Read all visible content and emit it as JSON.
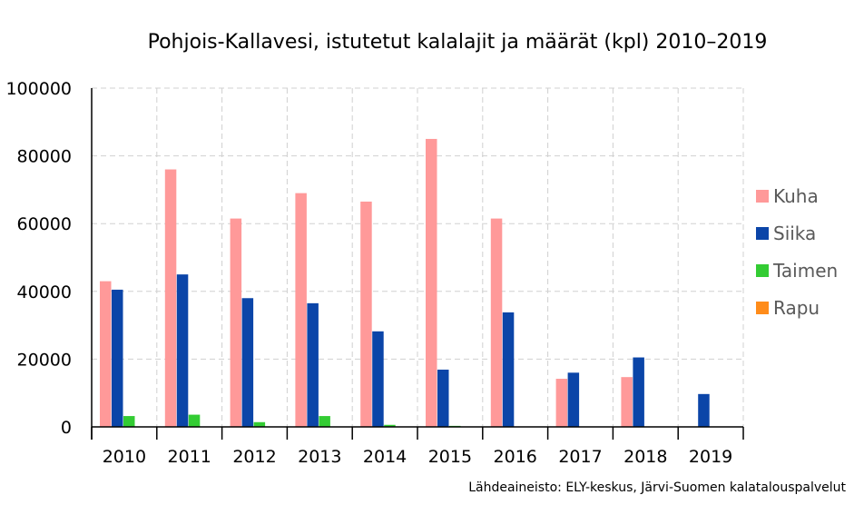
{
  "chart_data": {
    "type": "bar",
    "title": "Pohjois-Kallavesi, istutetut kalalajit ja määrät (kpl) 2010–2019",
    "xlabel": "",
    "ylabel": "",
    "categories": [
      "2010",
      "2011",
      "2012",
      "2013",
      "2014",
      "2015",
      "2016",
      "2017",
      "2018",
      "2019"
    ],
    "ylim": [
      0,
      100000
    ],
    "yticks": [
      "0",
      "20000",
      "40000",
      "60000",
      "80000",
      "100000"
    ],
    "grid": true,
    "legend_position": "right",
    "series": [
      {
        "name": "Kuha",
        "color": "#ff9999",
        "values": [
          43000,
          76000,
          61500,
          69000,
          66500,
          85000,
          61500,
          14200,
          14700,
          0
        ]
      },
      {
        "name": "Siika",
        "color": "#0b45a8",
        "values": [
          40500,
          45000,
          38000,
          36500,
          28200,
          16900,
          33800,
          16000,
          20500,
          9700
        ]
      },
      {
        "name": "Taimen",
        "color": "#33cc33",
        "values": [
          3200,
          3600,
          1400,
          3200,
          600,
          300,
          0,
          0,
          0,
          0
        ]
      },
      {
        "name": "Rapu",
        "color": "#ff8c1a",
        "values": [
          0,
          0,
          0,
          0,
          0,
          0,
          0,
          0,
          0,
          0
        ]
      }
    ],
    "source": "Lähdeaineisto: ELY-keskus, Järvi-Suomen kalatalouspalvelut"
  }
}
